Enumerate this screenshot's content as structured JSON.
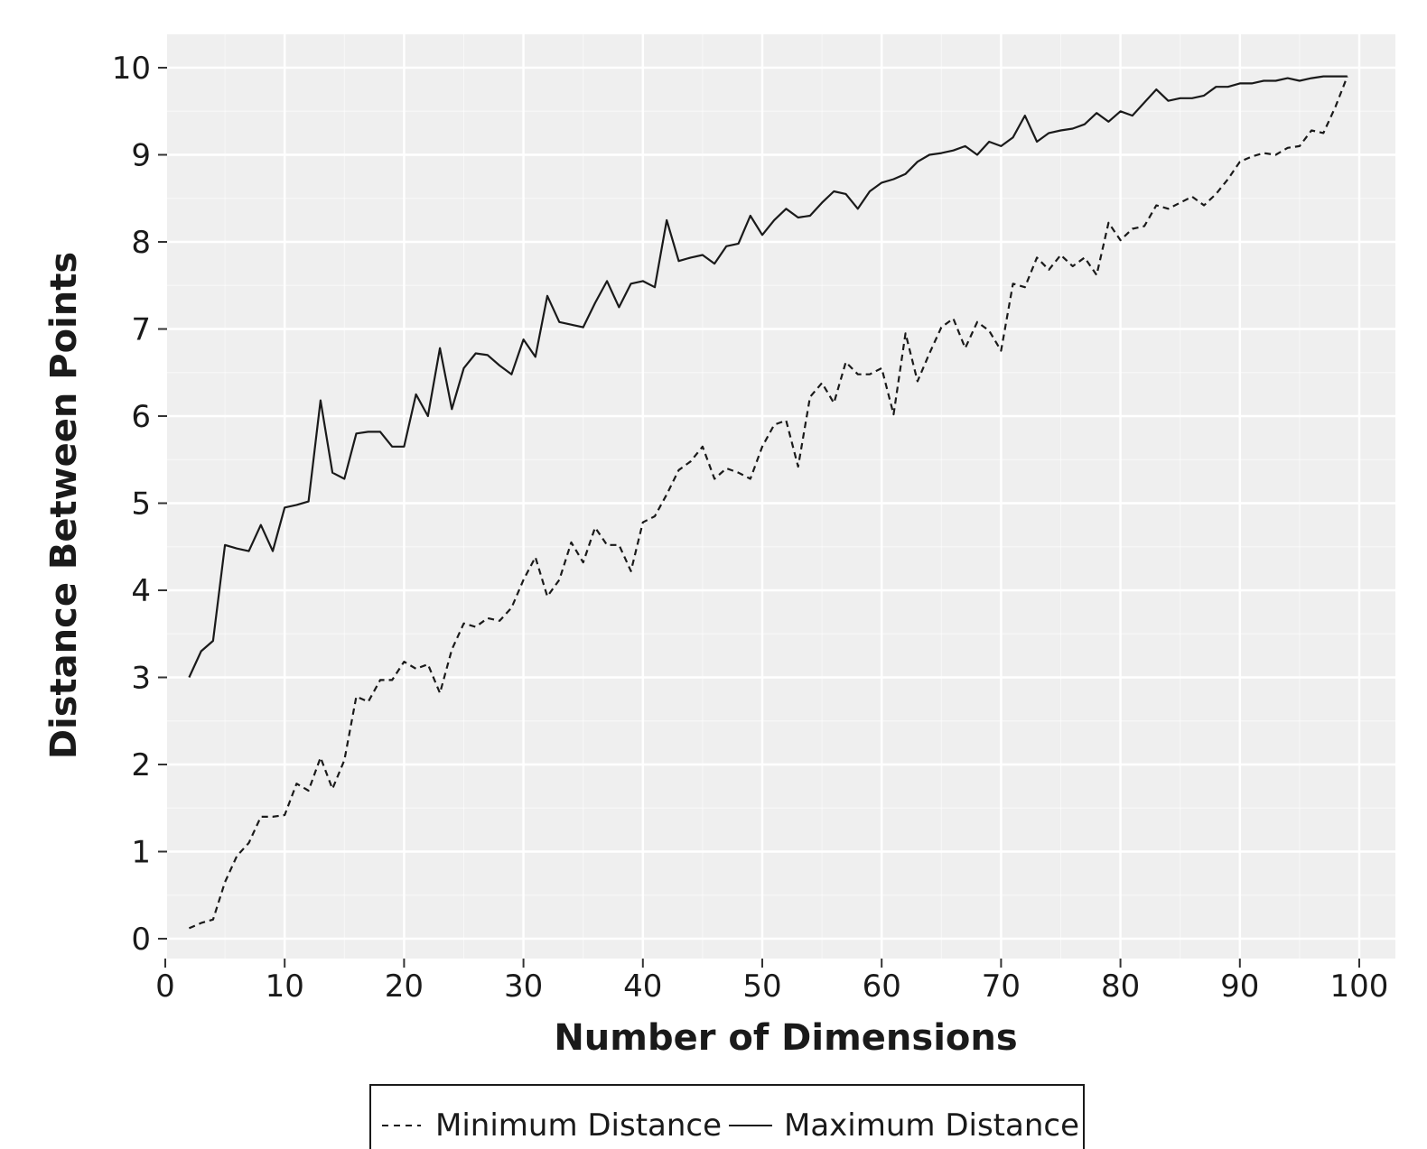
{
  "chart_data": {
    "type": "line",
    "title": "",
    "xlabel": "Number of Dimensions",
    "ylabel": "Distance Between Points",
    "xlim": [
      0,
      100
    ],
    "ylim": [
      0,
      10
    ],
    "xticks": [
      0,
      10,
      20,
      30,
      40,
      50,
      60,
      70,
      80,
      90,
      100
    ],
    "yticks": [
      0,
      1,
      2,
      3,
      4,
      5,
      6,
      7,
      8,
      9,
      10
    ],
    "grid": true,
    "legend_position": "bottom",
    "background_color": "#efefef",
    "grid_color": "#ffffff",
    "line_color": "#1a1a1a",
    "x": [
      2,
      3,
      4,
      5,
      6,
      7,
      8,
      9,
      10,
      11,
      12,
      13,
      14,
      15,
      16,
      17,
      18,
      19,
      20,
      21,
      22,
      23,
      24,
      25,
      26,
      27,
      28,
      29,
      30,
      31,
      32,
      33,
      34,
      35,
      36,
      37,
      38,
      39,
      40,
      41,
      42,
      43,
      44,
      45,
      46,
      47,
      48,
      49,
      50,
      51,
      52,
      53,
      54,
      55,
      56,
      57,
      58,
      59,
      60,
      61,
      62,
      63,
      64,
      65,
      66,
      67,
      68,
      69,
      70,
      71,
      72,
      73,
      74,
      75,
      76,
      77,
      78,
      79,
      80,
      81,
      82,
      83,
      84,
      85,
      86,
      87,
      88,
      89,
      90,
      91,
      92,
      93,
      94,
      95,
      96,
      97,
      98,
      99
    ],
    "series": [
      {
        "name": "Minimum Distance",
        "style": "dashed",
        "values": [
          0.12,
          0.18,
          0.22,
          0.65,
          0.95,
          1.1,
          1.4,
          1.4,
          1.42,
          1.78,
          1.7,
          2.08,
          1.72,
          2.05,
          2.78,
          2.72,
          2.97,
          2.97,
          3.18,
          3.1,
          3.15,
          2.82,
          3.32,
          3.62,
          3.58,
          3.68,
          3.65,
          3.8,
          4.12,
          4.38,
          3.93,
          4.12,
          4.55,
          4.32,
          4.72,
          4.52,
          4.52,
          4.22,
          4.78,
          4.85,
          5.1,
          5.38,
          5.48,
          5.65,
          5.28,
          5.4,
          5.35,
          5.28,
          5.65,
          5.9,
          5.95,
          5.42,
          6.22,
          6.38,
          6.15,
          6.62,
          6.48,
          6.48,
          6.55,
          6.02,
          6.95,
          6.4,
          6.72,
          7.02,
          7.12,
          6.78,
          7.08,
          6.98,
          6.75,
          7.52,
          7.48,
          7.82,
          7.68,
          7.85,
          7.72,
          7.82,
          7.62,
          8.22,
          8.02,
          8.15,
          8.18,
          8.42,
          8.38,
          8.45,
          8.52,
          8.42,
          8.55,
          8.72,
          8.92,
          8.98,
          9.02,
          9.0,
          9.08,
          9.1,
          9.28,
          9.25,
          9.55,
          9.9
        ]
      },
      {
        "name": "Maximum Distance",
        "style": "solid",
        "values": [
          3.0,
          3.3,
          3.42,
          4.52,
          4.48,
          4.45,
          4.75,
          4.45,
          4.95,
          4.98,
          5.02,
          6.18,
          5.35,
          5.28,
          5.8,
          5.82,
          5.82,
          5.65,
          5.65,
          6.25,
          6.0,
          6.78,
          6.08,
          6.55,
          6.72,
          6.7,
          6.58,
          6.48,
          6.88,
          6.68,
          7.38,
          7.08,
          7.05,
          7.02,
          7.3,
          7.55,
          7.25,
          7.52,
          7.55,
          7.48,
          8.25,
          7.78,
          7.82,
          7.85,
          7.75,
          7.95,
          7.98,
          8.3,
          8.08,
          8.25,
          8.38,
          8.28,
          8.3,
          8.45,
          8.58,
          8.55,
          8.38,
          8.58,
          8.68,
          8.72,
          8.78,
          8.92,
          9.0,
          9.02,
          9.05,
          9.1,
          9.0,
          9.15,
          9.1,
          9.2,
          9.45,
          9.15,
          9.25,
          9.28,
          9.3,
          9.35,
          9.48,
          9.38,
          9.5,
          9.45,
          9.6,
          9.75,
          9.62,
          9.65,
          9.65,
          9.68,
          9.78,
          9.78,
          9.82,
          9.82,
          9.85,
          9.85,
          9.88,
          9.85,
          9.88,
          9.9,
          9.9,
          9.9
        ]
      }
    ]
  }
}
